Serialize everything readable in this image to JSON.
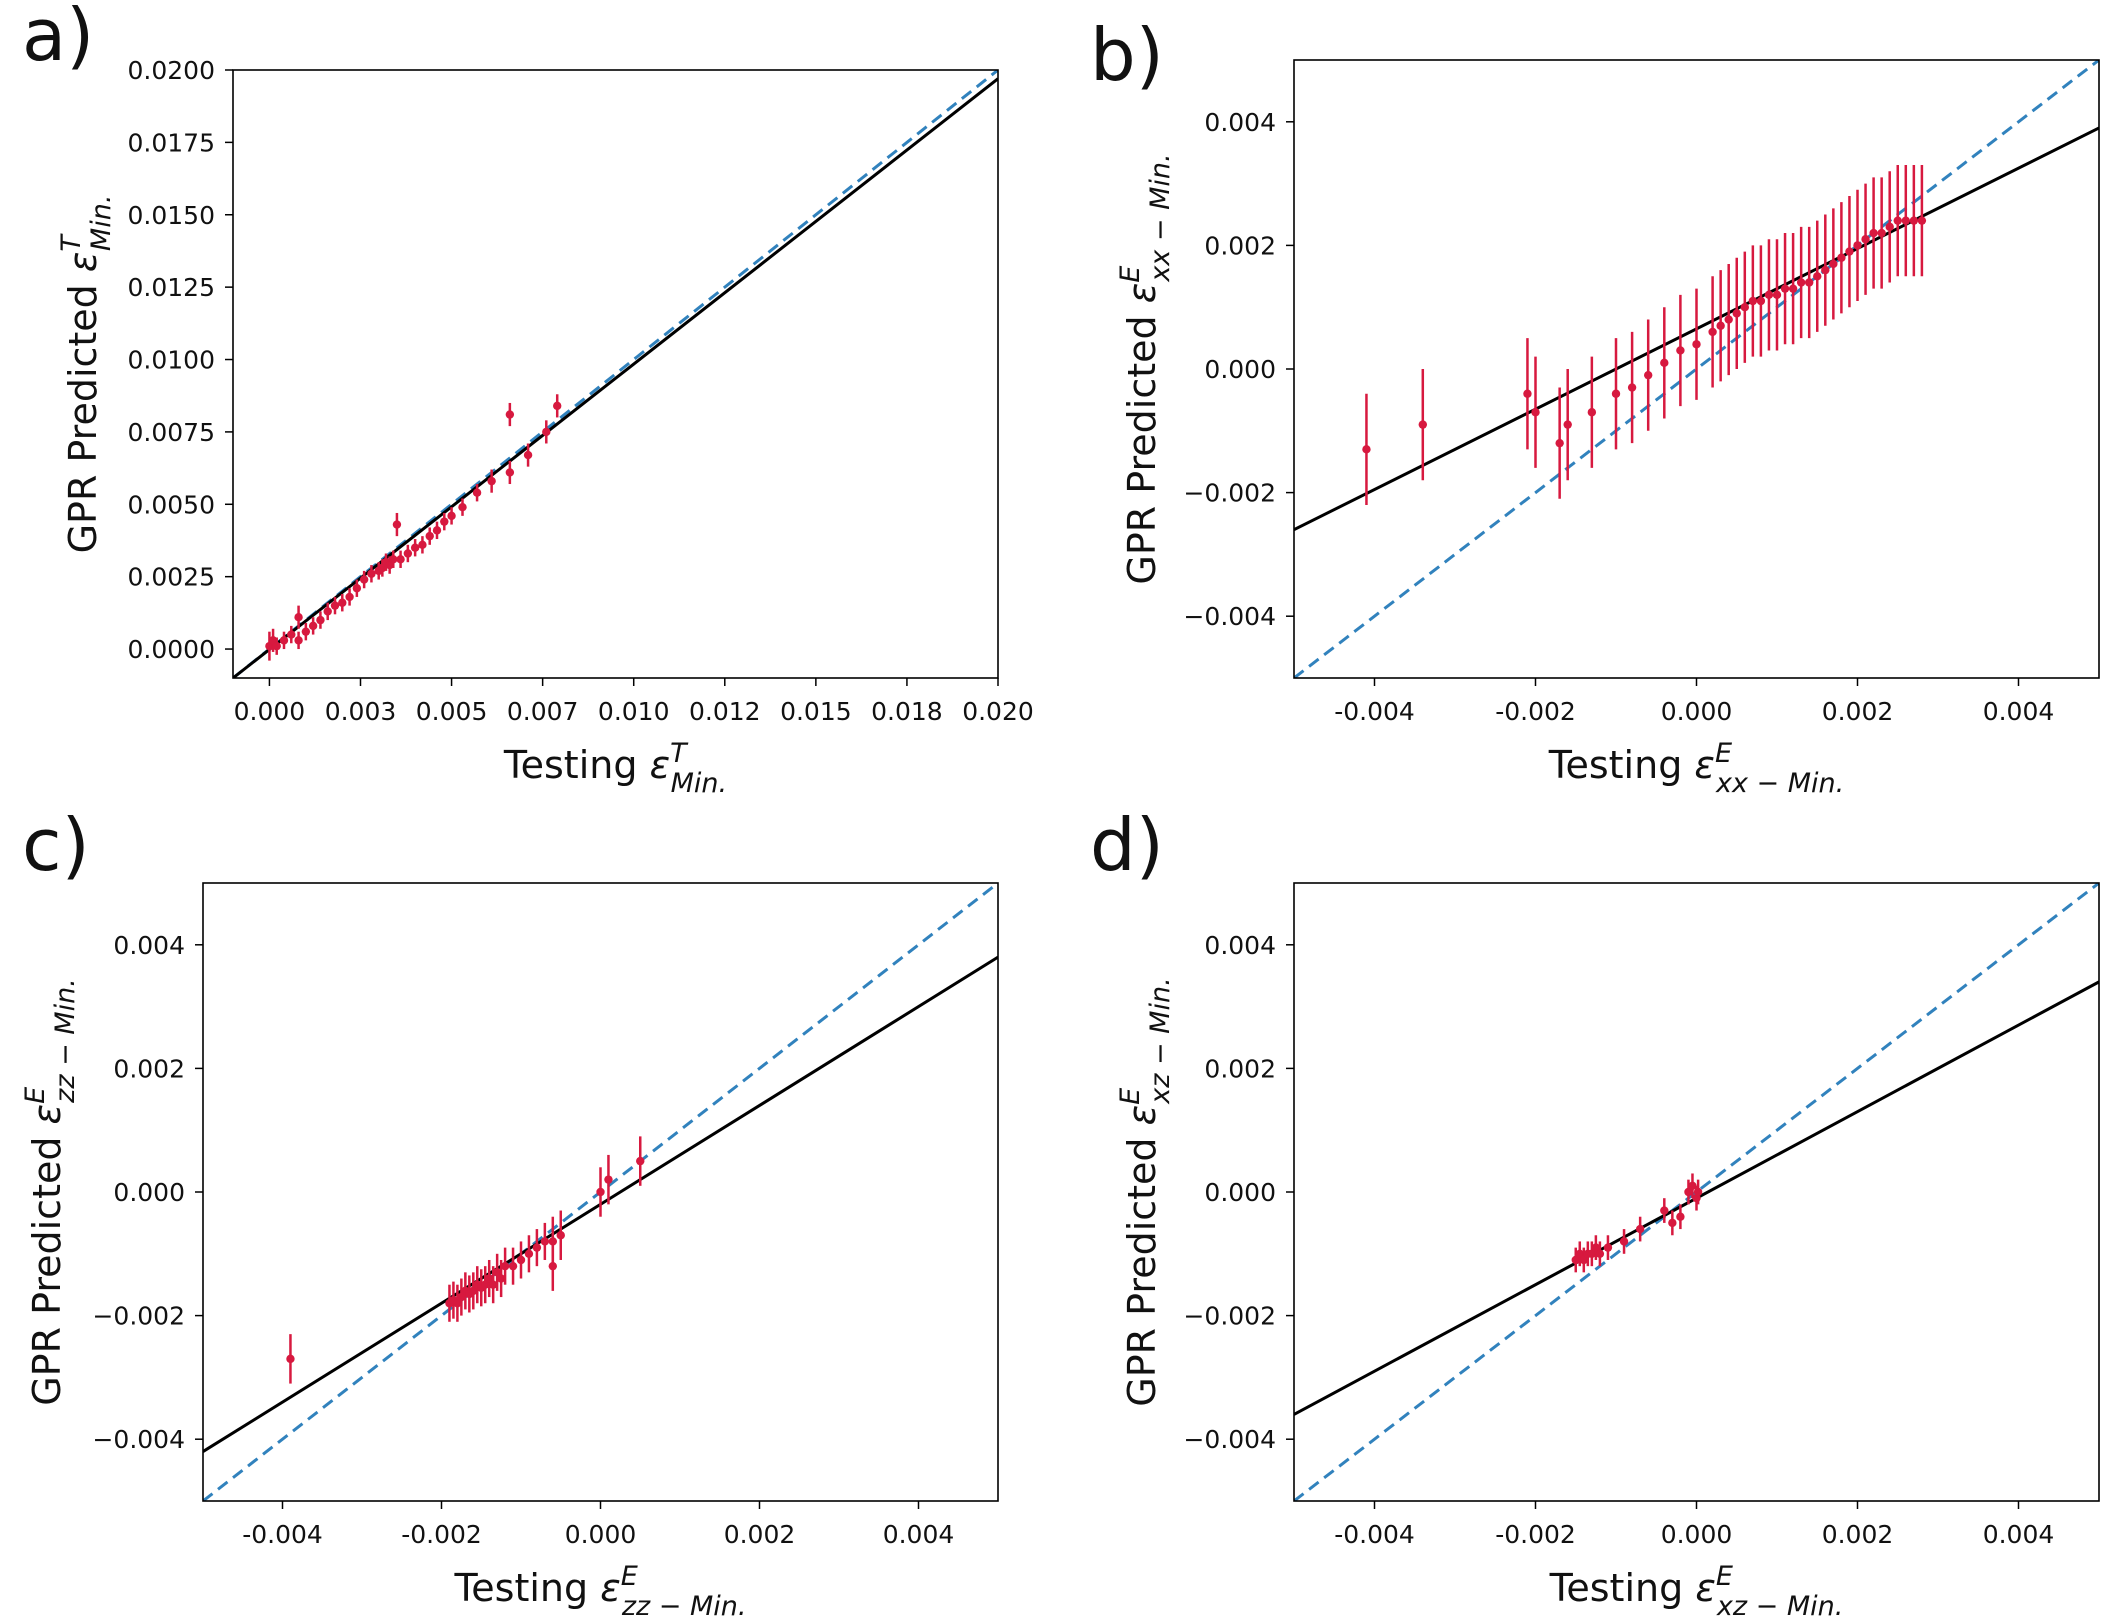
{
  "chart_data": [
    {
      "id": "a",
      "type": "scatter",
      "panel_label": "a)",
      "xlabel": {
        "text": "Testing ",
        "symbol": "ε",
        "sub": "Min.",
        "sup": "T"
      },
      "ylabel": {
        "text": "GPR Predicted ",
        "symbol": "ε",
        "sub": "Min.",
        "sup": "T"
      },
      "xlim": [
        -0.001,
        0.02
      ],
      "ylim": [
        -0.001,
        0.02
      ],
      "xticks": [
        0.0,
        0.0025,
        0.005,
        0.0075,
        0.01,
        0.0125,
        0.015,
        0.0175,
        0.02
      ],
      "xtick_labels": [
        "0.000",
        "0.003",
        "0.005",
        "0.007",
        "0.010",
        "0.012",
        "0.015",
        "0.018",
        "0.020"
      ],
      "yticks": [
        0.0,
        0.0025,
        0.005,
        0.0075,
        0.01,
        0.0125,
        0.015,
        0.0175,
        0.02
      ],
      "ytick_labels": [
        "0.0000",
        "0.0025",
        "0.0050",
        "0.0075",
        "0.0100",
        "0.0125",
        "0.0150",
        "0.0175",
        "0.0200"
      ],
      "identity_line": {
        "style": "dashed",
        "color": "#3182bd",
        "x": [
          -0.001,
          0.02
        ],
        "y": [
          -0.001,
          0.02
        ]
      },
      "fit_line": {
        "style": "solid",
        "color": "#000000",
        "x": [
          -0.001,
          0.02
        ],
        "y": [
          -0.001,
          0.0197
        ]
      },
      "points_color": "#d7193f",
      "points": {
        "x": [
          0.0,
          0.0001,
          0.0002,
          0.0004,
          0.0006,
          0.0008,
          0.001,
          0.0012,
          0.0014,
          0.0016,
          0.0018,
          0.002,
          0.0022,
          0.0024,
          0.0026,
          0.0028,
          0.003,
          0.0031,
          0.0032,
          0.0033,
          0.0034,
          0.0035,
          0.0036,
          0.0038,
          0.004,
          0.0042,
          0.0044,
          0.0046,
          0.0048,
          0.005,
          0.0053,
          0.0057,
          0.0061,
          0.0066,
          0.0066,
          0.0071,
          0.0076,
          0.0079,
          0.0008
        ],
        "y": [
          0.0001,
          0.0003,
          0.0001,
          0.0003,
          0.0005,
          0.0003,
          0.0006,
          0.0008,
          0.001,
          0.0013,
          0.0015,
          0.0016,
          0.0018,
          0.0021,
          0.0024,
          0.0026,
          0.0027,
          0.0028,
          0.003,
          0.0029,
          0.0031,
          0.0043,
          0.0031,
          0.0033,
          0.0035,
          0.0036,
          0.0039,
          0.0041,
          0.0044,
          0.0046,
          0.0049,
          0.0054,
          0.0058,
          0.0081,
          0.0061,
          0.0067,
          0.0075,
          0.0084,
          0.0011
        ],
        "err": [
          0.0005,
          0.0004,
          0.0003,
          0.0003,
          0.0003,
          0.0003,
          0.0003,
          0.0003,
          0.0003,
          0.0003,
          0.0003,
          0.0003,
          0.0003,
          0.0003,
          0.0003,
          0.0003,
          0.0003,
          0.0003,
          0.0003,
          0.0003,
          0.0003,
          0.0004,
          0.0003,
          0.0003,
          0.0003,
          0.0003,
          0.0003,
          0.0003,
          0.0003,
          0.0003,
          0.0003,
          0.0003,
          0.0004,
          0.0004,
          0.0004,
          0.0004,
          0.0004,
          0.0004,
          0.0004
        ]
      }
    },
    {
      "id": "b",
      "type": "scatter",
      "panel_label": "b)",
      "xlabel": {
        "text": "Testing ",
        "symbol": "ε",
        "sub": "xx − Min.",
        "sup": "E"
      },
      "ylabel": {
        "text": "GPR Predicted ",
        "symbol": "ε",
        "sub": "xx − Min.",
        "sup": "E"
      },
      "xlim": [
        -0.005,
        0.005
      ],
      "ylim": [
        -0.005,
        0.005
      ],
      "xticks": [
        -0.004,
        -0.002,
        0.0,
        0.002,
        0.004
      ],
      "xtick_labels": [
        "-0.004",
        "-0.002",
        "0.000",
        "0.002",
        "0.004"
      ],
      "yticks": [
        -0.004,
        -0.002,
        0.0,
        0.002,
        0.004
      ],
      "ytick_labels": [
        "−0.004",
        "−0.002",
        "0.000",
        "0.002",
        "0.004"
      ],
      "identity_line": {
        "style": "dashed",
        "color": "#3182bd",
        "x": [
          -0.005,
          0.005
        ],
        "y": [
          -0.005,
          0.005
        ]
      },
      "fit_line": {
        "style": "solid",
        "color": "#000000",
        "x": [
          -0.005,
          0.005
        ],
        "y": [
          -0.0026,
          0.0039
        ]
      },
      "points_color": "#d7193f",
      "points": {
        "x": [
          -0.0041,
          -0.0034,
          -0.0021,
          -0.002,
          -0.0017,
          -0.0016,
          -0.0013,
          -0.001,
          -0.0008,
          -0.0006,
          -0.0004,
          -0.0002,
          0.0,
          0.0002,
          0.0003,
          0.0004,
          0.0005,
          0.0006,
          0.0007,
          0.0008,
          0.0009,
          0.001,
          0.0011,
          0.0012,
          0.0013,
          0.0014,
          0.0015,
          0.0016,
          0.0017,
          0.0018,
          0.0019,
          0.002,
          0.0021,
          0.0022,
          0.0023,
          0.0024,
          0.0025,
          0.0026,
          0.0027,
          0.0028
        ],
        "y": [
          -0.0013,
          -0.0009,
          -0.0004,
          -0.0007,
          -0.0012,
          -0.0009,
          -0.0007,
          -0.0004,
          -0.0003,
          -0.0001,
          0.0001,
          0.0003,
          0.0004,
          0.0006,
          0.0007,
          0.0008,
          0.0009,
          0.001,
          0.0011,
          0.0011,
          0.0012,
          0.0012,
          0.0013,
          0.0013,
          0.0014,
          0.0014,
          0.0015,
          0.0016,
          0.0017,
          0.0018,
          0.0019,
          0.002,
          0.0021,
          0.0022,
          0.0022,
          0.0023,
          0.0024,
          0.0024,
          0.0024,
          0.0024
        ],
        "err": [
          0.0009,
          0.0009,
          0.0009,
          0.0009,
          0.0009,
          0.0009,
          0.0009,
          0.0009,
          0.0009,
          0.0009,
          0.0009,
          0.0009,
          0.0009,
          0.0009,
          0.0009,
          0.0009,
          0.0009,
          0.0009,
          0.0009,
          0.0009,
          0.0009,
          0.0009,
          0.0009,
          0.0009,
          0.0009,
          0.0009,
          0.0009,
          0.0009,
          0.0009,
          0.0009,
          0.0009,
          0.0009,
          0.0009,
          0.0009,
          0.0009,
          0.0009,
          0.0009,
          0.0009,
          0.0009,
          0.0009
        ]
      }
    },
    {
      "id": "c",
      "type": "scatter",
      "panel_label": "c)",
      "xlabel": {
        "text": "Testing ",
        "symbol": "ε",
        "sub": "zz − Min.",
        "sup": "E"
      },
      "ylabel": {
        "text": "GPR Predicted ",
        "symbol": "ε",
        "sub": "zz − Min.",
        "sup": "E"
      },
      "xlim": [
        -0.005,
        0.005
      ],
      "ylim": [
        -0.005,
        0.005
      ],
      "xticks": [
        -0.004,
        -0.002,
        0.0,
        0.002,
        0.004
      ],
      "xtick_labels": [
        "-0.004",
        "-0.002",
        "0.000",
        "0.002",
        "0.004"
      ],
      "yticks": [
        -0.004,
        -0.002,
        0.0,
        0.002,
        0.004
      ],
      "ytick_labels": [
        "−0.004",
        "−0.002",
        "0.000",
        "0.002",
        "0.004"
      ],
      "identity_line": {
        "style": "dashed",
        "color": "#3182bd",
        "x": [
          -0.005,
          0.005
        ],
        "y": [
          -0.005,
          0.005
        ]
      },
      "fit_line": {
        "style": "solid",
        "color": "#000000",
        "x": [
          -0.005,
          0.005
        ],
        "y": [
          -0.0042,
          0.0038
        ]
      },
      "points_color": "#d7193f",
      "points": {
        "x": [
          -0.0039,
          -0.0019,
          -0.00185,
          -0.0018,
          -0.00175,
          -0.0017,
          -0.00165,
          -0.0016,
          -0.00155,
          -0.0015,
          -0.00145,
          -0.0014,
          -0.00135,
          -0.0013,
          -0.00125,
          -0.0012,
          -0.0011,
          -0.001,
          -0.0009,
          -0.0008,
          -0.0007,
          -0.0006,
          -0.0006,
          -0.0005,
          0.0,
          0.0001,
          0.0005
        ],
        "y": [
          -0.0027,
          -0.0018,
          -0.00175,
          -0.0018,
          -0.0017,
          -0.0016,
          -0.00165,
          -0.0016,
          -0.0015,
          -0.00155,
          -0.0015,
          -0.0014,
          -0.0015,
          -0.0013,
          -0.0014,
          -0.0012,
          -0.0012,
          -0.0011,
          -0.001,
          -0.0009,
          -0.0008,
          -0.0008,
          -0.0012,
          -0.0007,
          0.0,
          0.0002,
          0.0005
        ],
        "err": [
          0.0004,
          0.0003,
          0.0003,
          0.0003,
          0.0003,
          0.0003,
          0.0003,
          0.0003,
          0.0003,
          0.0003,
          0.0003,
          0.0003,
          0.0003,
          0.0003,
          0.0003,
          0.0003,
          0.0003,
          0.0003,
          0.0003,
          0.0003,
          0.0003,
          0.0004,
          0.0004,
          0.0004,
          0.0004,
          0.0004,
          0.0004
        ]
      }
    },
    {
      "id": "d",
      "type": "scatter",
      "panel_label": "d)",
      "xlabel": {
        "text": "Testing ",
        "symbol": "ε",
        "sub": "xz − Min.",
        "sup": "E"
      },
      "ylabel": {
        "text": "GPR Predicted ",
        "symbol": "ε",
        "sub": "xz − Min.",
        "sup": "E"
      },
      "xlim": [
        -0.005,
        0.005
      ],
      "ylim": [
        -0.005,
        0.005
      ],
      "xticks": [
        -0.004,
        -0.002,
        0.0,
        0.002,
        0.004
      ],
      "xtick_labels": [
        "-0.004",
        "-0.002",
        "0.000",
        "0.002",
        "0.004"
      ],
      "yticks": [
        -0.004,
        -0.002,
        0.0,
        0.002,
        0.004
      ],
      "ytick_labels": [
        "−0.004",
        "−0.002",
        "0.000",
        "0.002",
        "0.004"
      ],
      "identity_line": {
        "style": "dashed",
        "color": "#3182bd",
        "x": [
          -0.005,
          0.005
        ],
        "y": [
          -0.005,
          0.005
        ]
      },
      "fit_line": {
        "style": "solid",
        "color": "#000000",
        "x": [
          -0.005,
          0.005
        ],
        "y": [
          -0.0036,
          0.0034
        ]
      },
      "points_color": "#d7193f",
      "points": {
        "x": [
          -0.0015,
          -0.00145,
          -0.0014,
          -0.00135,
          -0.0013,
          -0.00125,
          -0.0012,
          -0.0011,
          -0.0009,
          -0.0007,
          -0.0004,
          -0.0003,
          -0.0002,
          -0.0001,
          -5e-05,
          0.0,
          2e-05
        ],
        "y": [
          -0.0011,
          -0.001,
          -0.0011,
          -0.001,
          -0.001,
          -0.0009,
          -0.001,
          -0.0009,
          -0.0008,
          -0.0006,
          -0.0003,
          -0.0005,
          -0.0004,
          0.0,
          0.0001,
          -0.0001,
          0.0
        ],
        "err": [
          0.0002,
          0.0002,
          0.0002,
          0.0002,
          0.0002,
          0.0002,
          0.0002,
          0.0002,
          0.0002,
          0.0002,
          0.0002,
          0.0002,
          0.0002,
          0.0002,
          0.0002,
          0.0002,
          0.0002
        ]
      }
    }
  ]
}
